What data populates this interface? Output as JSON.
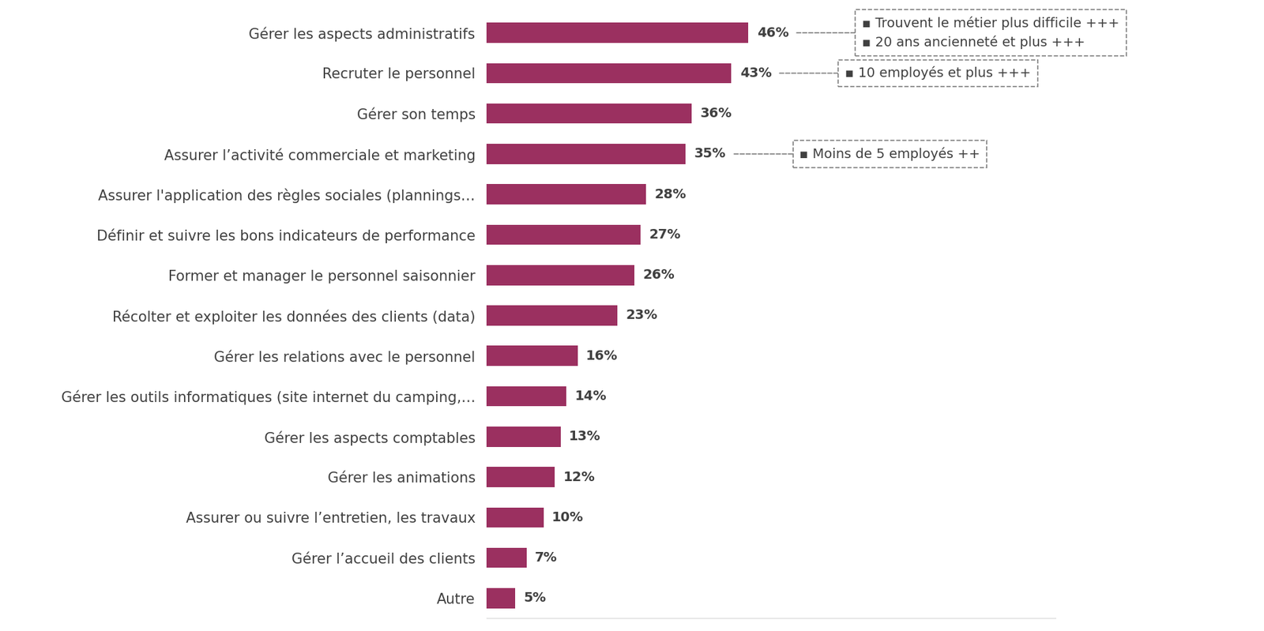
{
  "chart_data": {
    "type": "bar",
    "orientation": "horizontal",
    "categories": [
      "Gérer les aspects administratifs",
      "Recruter le personnel",
      "Gérer son temps",
      "Assurer l’activité commerciale et marketing",
      "Assurer l'application des règles sociales (plannings…",
      "Définir et suivre les bons indicateurs de performance",
      "Former et manager le personnel saisonnier",
      "Récolter et exploiter les données des clients (data)",
      "Gérer les relations avec le personnel",
      "Gérer les outils informatiques (site internet du camping,…",
      "Gérer les aspects comptables",
      "Gérer les animations",
      "Assurer ou suivre l’entretien, les travaux",
      "Gérer l’accueil des clients",
      "Autre"
    ],
    "values": [
      46,
      43,
      36,
      35,
      28,
      27,
      26,
      23,
      16,
      14,
      13,
      12,
      10,
      7,
      5
    ],
    "value_labels": [
      "46%",
      "43%",
      "36%",
      "35%",
      "28%",
      "27%",
      "26%",
      "23%",
      "16%",
      "14%",
      "13%",
      "12%",
      "10%",
      "7%",
      "5%"
    ],
    "data_labels": true,
    "color": "#9b3060",
    "xlim": [
      0,
      100
    ],
    "xticks": [],
    "tick_labels": "y",
    "grid": false,
    "annotations": [
      {
        "category": "Gérer les aspects administratifs",
        "lines": [
          "▪ Trouvent le métier plus difficile +++",
          "▪ 20 ans ancienneté et plus +++"
        ]
      },
      {
        "category": "Recruter le personnel",
        "lines": [
          "▪ 10 employés et plus +++"
        ]
      },
      {
        "category": "Assurer l’activité commerciale et marketing",
        "lines": [
          "▪ Moins de 5 employés ++"
        ]
      }
    ]
  }
}
